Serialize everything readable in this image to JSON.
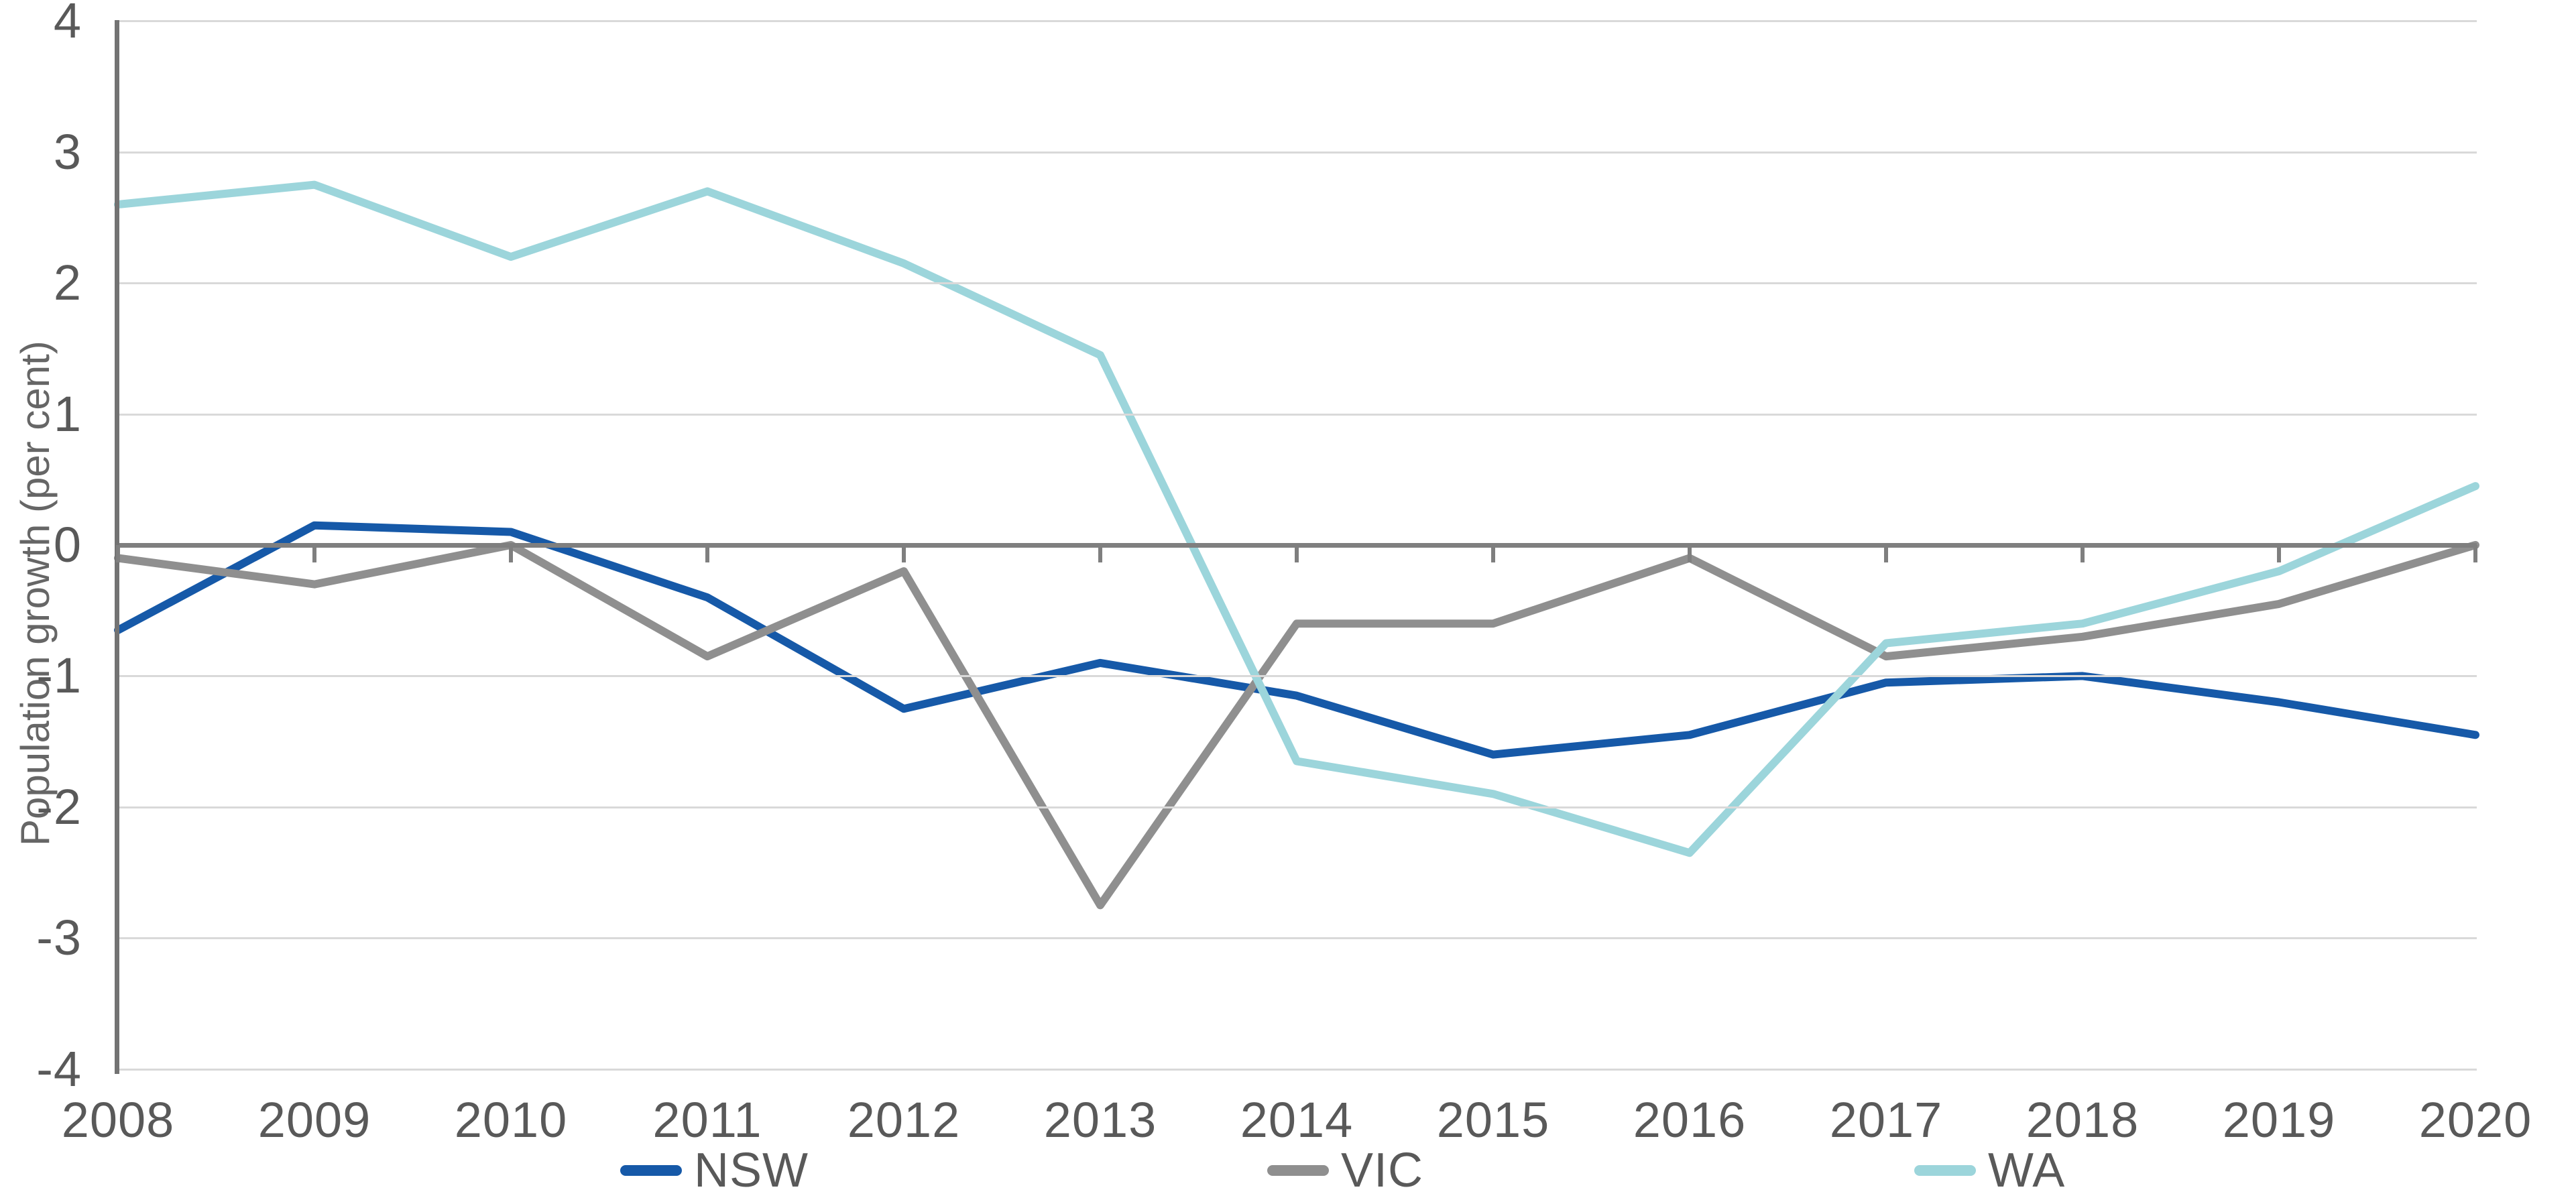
{
  "chart_data": {
    "type": "line",
    "title": "",
    "xlabel": "",
    "ylabel": "Population growth (per cent)",
    "ylim": [
      -4,
      4
    ],
    "ytick_step": 1,
    "ytick_labels": [
      "4",
      "3",
      "2",
      "1",
      "0",
      "-1",
      "-2",
      "-3",
      "-4"
    ],
    "grid": "horizontal",
    "legend_position": "bottom",
    "categories": [
      "2008",
      "2009",
      "2010",
      "2011",
      "2012",
      "2013",
      "2014",
      "2015",
      "2016",
      "2017",
      "2018",
      "2019",
      "2020"
    ],
    "series": [
      {
        "name": "NSW",
        "color": "#1659A8",
        "values": [
          -0.65,
          0.15,
          0.1,
          -0.4,
          -1.25,
          -0.9,
          -1.15,
          -1.6,
          -1.45,
          -1.05,
          -1.0,
          -1.2,
          -1.45
        ]
      },
      {
        "name": "VIC",
        "color": "#8F8F8F",
        "values": [
          -0.1,
          -0.3,
          0.0,
          -0.85,
          -0.2,
          -2.75,
          -0.6,
          -0.6,
          -0.1,
          -0.85,
          -0.7,
          -0.45,
          0.0
        ]
      },
      {
        "name": "WA",
        "color": "#9CD5DB",
        "values": [
          2.6,
          2.75,
          2.2,
          2.7,
          2.15,
          1.45,
          -1.65,
          -1.9,
          -2.35,
          -0.75,
          -0.6,
          -0.2,
          0.45
        ]
      }
    ]
  },
  "colors": {
    "background": "#FFFFFF",
    "gridline": "#D9D9D9",
    "zero_line": "#7F7F7F",
    "axis_line": "#737373",
    "tick_mark": "#7F7F7F",
    "tick_label": "#595959",
    "axis_title": "#666666"
  }
}
